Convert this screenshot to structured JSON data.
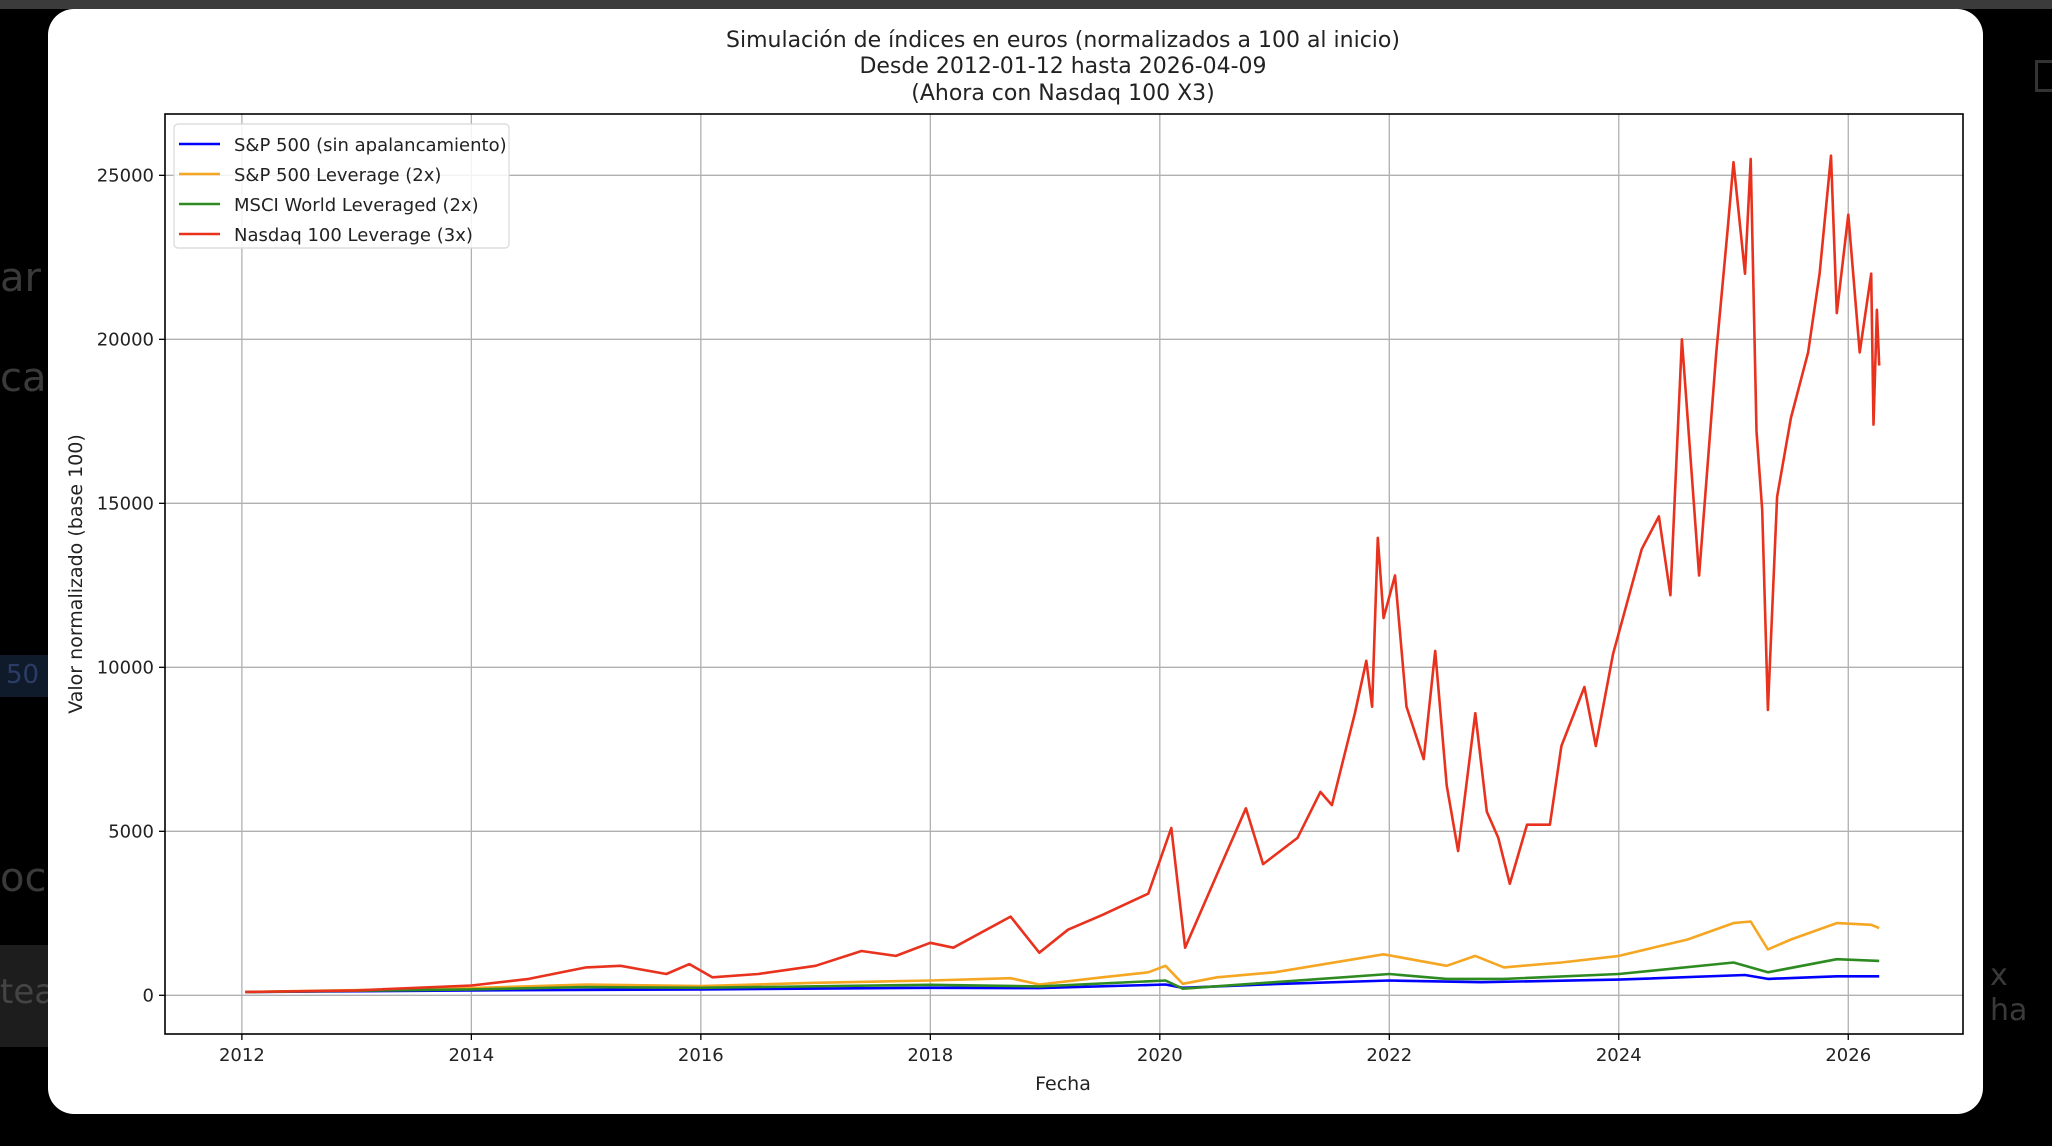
{
  "background": {
    "fragments": [
      "ar",
      "cac",
      "50",
      "oci",
      "tea",
      "x ha"
    ]
  },
  "chart_data": {
    "type": "line",
    "title": [
      "Simulación de índices en euros (normalizados a 100 al inicio)",
      "Desde 2012-01-12 hasta 2026-04-09",
      "(Ahora con Nasdaq 100 X3)"
    ],
    "xlabel": "Fecha",
    "ylabel": "Valor normalizado (base 100)",
    "xlim": [
      2011.33,
      2027.0
    ],
    "ylim": [
      -1180,
      26870
    ],
    "xticks": [
      2012,
      2014,
      2016,
      2018,
      2020,
      2022,
      2024,
      2026
    ],
    "yticks": [
      0,
      5000,
      10000,
      15000,
      20000,
      25000
    ],
    "grid": true,
    "legend_position": "top-left",
    "series": [
      {
        "name": "S&P 500 (sin apalancamiento)",
        "color": "#0000ff",
        "x": [
          2012.03,
          2014,
          2016,
          2018,
          2018.95,
          2020.05,
          2020.2,
          2021,
          2022,
          2022.8,
          2024,
          2025.1,
          2025.3,
          2025.9,
          2026.27
        ],
        "y": [
          100,
          150,
          180,
          230,
          220,
          330,
          230,
          340,
          450,
          400,
          480,
          620,
          500,
          580,
          580
        ]
      },
      {
        "name": "S&P 500 Leverage (2x)",
        "color": "#f5a623",
        "x": [
          2012.03,
          2014,
          2015,
          2016,
          2017,
          2018,
          2018.7,
          2018.95,
          2019.5,
          2019.9,
          2020.05,
          2020.2,
          2020.5,
          2021,
          2021.95,
          2022.5,
          2022.75,
          2023,
          2023.5,
          2024,
          2024.6,
          2025,
          2025.15,
          2025.3,
          2025.5,
          2025.9,
          2026.2,
          2026.27
        ],
        "y": [
          100,
          220,
          330,
          280,
          380,
          450,
          520,
          330,
          550,
          700,
          900,
          350,
          550,
          700,
          1250,
          900,
          1200,
          850,
          1000,
          1200,
          1700,
          2200,
          2250,
          1400,
          1700,
          2200,
          2150,
          2050
        ]
      },
      {
        "name": "MSCI World Leveraged (2x)",
        "color": "#2e8b22",
        "x": [
          2012.03,
          2014,
          2015,
          2016,
          2018,
          2018.95,
          2020.05,
          2020.2,
          2021,
          2022,
          2022.5,
          2023,
          2024,
          2025,
          2025.3,
          2025.9,
          2026.27
        ],
        "y": [
          100,
          180,
          250,
          230,
          320,
          270,
          450,
          200,
          400,
          650,
          500,
          500,
          650,
          1000,
          700,
          1100,
          1050
        ]
      },
      {
        "name": "Nasdaq 100 Leverage (3x)",
        "color": "#e8321e",
        "x": [
          2012.03,
          2013,
          2014,
          2014.5,
          2015,
          2015.3,
          2015.7,
          2015.9,
          2016.1,
          2016.5,
          2017,
          2017.4,
          2017.7,
          2018,
          2018.2,
          2018.7,
          2018.95,
          2019.2,
          2019.5,
          2019.9,
          2020.1,
          2020.22,
          2020.5,
          2020.75,
          2020.9,
          2021.2,
          2021.4,
          2021.5,
          2021.7,
          2021.8,
          2021.85,
          2021.9,
          2021.95,
          2022.05,
          2022.15,
          2022.3,
          2022.4,
          2022.5,
          2022.6,
          2022.75,
          2022.85,
          2022.95,
          2023.05,
          2023.2,
          2023.4,
          2023.5,
          2023.7,
          2023.8,
          2023.95,
          2024.2,
          2024.35,
          2024.45,
          2024.55,
          2024.7,
          2024.85,
          2024.95,
          2025.0,
          2025.1,
          2025.15,
          2025.2,
          2025.25,
          2025.3,
          2025.38,
          2025.5,
          2025.65,
          2025.75,
          2025.85,
          2025.9,
          2026.0,
          2026.1,
          2026.2,
          2026.22,
          2026.25,
          2026.27
        ],
        "y": [
          100,
          150,
          300,
          500,
          850,
          900,
          650,
          950,
          550,
          650,
          900,
          1350,
          1200,
          1600,
          1450,
          2400,
          1300,
          2000,
          2450,
          3100,
          5100,
          1450,
          3700,
          5700,
          4000,
          4800,
          6200,
          5800,
          8600,
          10200,
          8800,
          13950,
          11500,
          12800,
          8800,
          7200,
          10500,
          6400,
          4400,
          8600,
          5600,
          4800,
          3400,
          5200,
          5200,
          7600,
          9400,
          7600,
          10400,
          13600,
          14600,
          12200,
          20000,
          12800,
          19600,
          23400,
          25400,
          22000,
          25500,
          17200,
          14800,
          8700,
          15200,
          17600,
          19600,
          22000,
          25600,
          20800,
          23800,
          19600,
          22000,
          17400,
          20900,
          19200
        ]
      }
    ]
  }
}
